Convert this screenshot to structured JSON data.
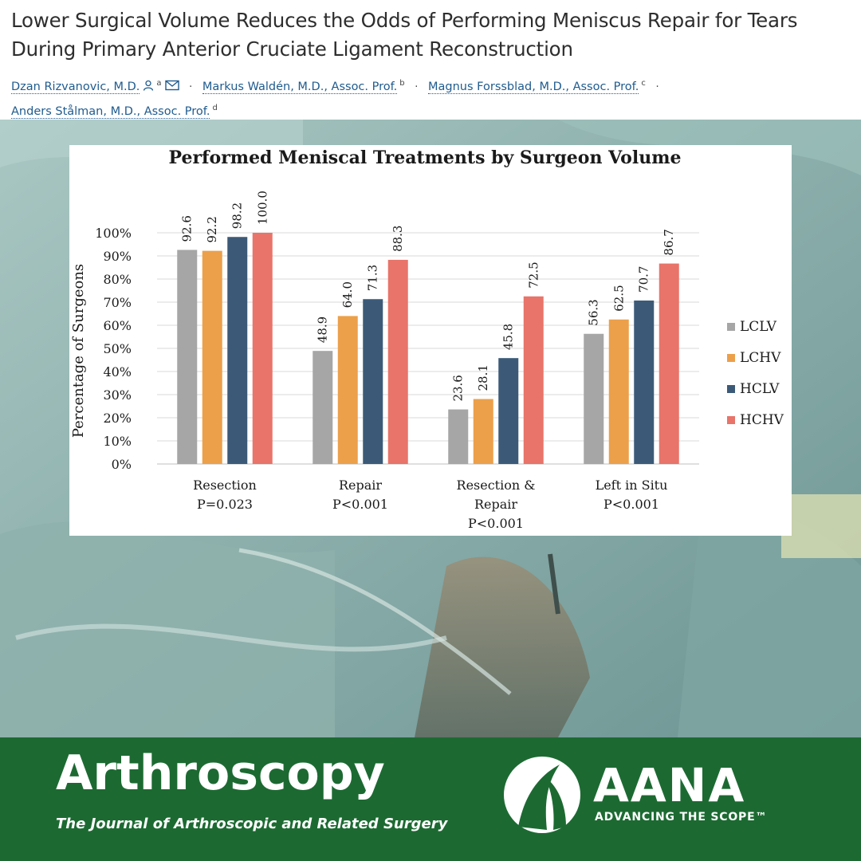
{
  "article": {
    "title": "Lower Surgical Volume Reduces the Odds of Performing Meniscus Repair for Tears During Primary Anterior Cruciate Ligament Reconstruction",
    "authors": [
      {
        "name": "Dzan Rizvanovic, M.D.",
        "aff": "a"
      },
      {
        "name": "Markus Waldén, M.D., Assoc. Prof.",
        "aff": "b"
      },
      {
        "name": "Magnus Forssblad, M.D., Assoc. Prof.",
        "aff": "c"
      },
      {
        "name": "Anders Stålman, M.D., Assoc. Prof.",
        "aff": "d"
      }
    ],
    "separator": "·",
    "icons": [
      "person-icon",
      "envelope-icon"
    ]
  },
  "chart_data": {
    "type": "bar",
    "title": "Performed Meniscal Treatments by Surgeon Volume",
    "ylabel": "Percentage of Surgeons",
    "xlabel": "",
    "ylim": [
      0,
      100
    ],
    "yticks": [
      "0%",
      "10%",
      "20%",
      "30%",
      "40%",
      "50%",
      "60%",
      "70%",
      "80%",
      "90%",
      "100%"
    ],
    "grid": true,
    "legend_position": "right",
    "categories": [
      [
        "Resection",
        "P=0.023"
      ],
      [
        "Repair",
        "P<0.001"
      ],
      [
        "Resection &",
        "Repair",
        "P<0.001"
      ],
      [
        "Left in Situ",
        "P<0.001"
      ]
    ],
    "series": [
      {
        "name": "LCLV",
        "color": "#a6a6a6",
        "values": [
          92.6,
          48.9,
          23.6,
          56.3
        ],
        "labels": [
          "92.6",
          "48.9",
          "23.6",
          "56.3"
        ]
      },
      {
        "name": "LCHV",
        "color": "#eca04a",
        "values": [
          92.2,
          64.0,
          28.1,
          62.5
        ],
        "labels": [
          "92.2",
          "64.0",
          "28.1",
          "62.5"
        ]
      },
      {
        "name": "HCLV",
        "color": "#3c5a78",
        "values": [
          98.2,
          71.3,
          45.8,
          70.7
        ],
        "labels": [
          "98.2",
          "71.3",
          "45.8",
          "70.7"
        ]
      },
      {
        "name": "HCHV",
        "color": "#e8746a",
        "values": [
          100.0,
          88.3,
          72.5,
          86.7
        ],
        "labels": [
          "100.0",
          "88.3",
          "72.5",
          "86.7"
        ]
      }
    ]
  },
  "footer": {
    "brand": "Arthroscopy",
    "subtitle": "The Journal of Arthroscopic and Related Surgery",
    "partner": "AANA",
    "partner_tagline": "ADVANCING THE SCOPE™",
    "background_color": "#1c6a32"
  }
}
